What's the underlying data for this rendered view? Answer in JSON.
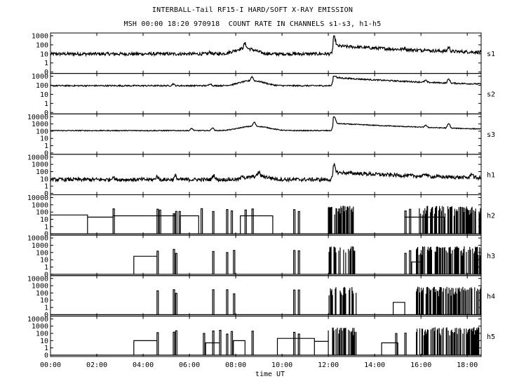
{
  "title_line1": "INTERBALL-Tail RF15-I HARD/SOFT X-RAY EMISSION",
  "title_line2": "MSH 00:00 18:20 970918  COUNT RATE IN CHANNELS s1-s3, h1-h5",
  "chart_data": {
    "type": "line",
    "title": "INTERBALL-Tail RF15-I HARD/SOFT X-RAY EMISSION",
    "subtitle": "MSH 00:00 18:20 970918  COUNT RATE IN CHANNELS s1-s3, h1-h5",
    "xlabel": "time UT",
    "xlim": [
      0,
      18.6
    ],
    "x_ticks": [
      "00:00",
      "02:00",
      "04:00",
      "06:00",
      "08:00",
      "10:00",
      "12:00",
      "14:00",
      "16:00",
      "18:00"
    ],
    "x_tick_hours": [
      0,
      2,
      4,
      6,
      8,
      10,
      12,
      14,
      16,
      18
    ],
    "yscale": "log",
    "grid": false,
    "panels": [
      {
        "name": "s1",
        "ylim": [
          0,
          1000
        ],
        "y_ticks": [
          "1000",
          "100",
          "10",
          "1",
          "0"
        ],
        "baseline": 10,
        "noise": 0.35,
        "events": [
          [
            6.9,
            0.7
          ],
          [
            8.4,
            2.5
          ],
          [
            12.25,
            8
          ],
          [
            15.3,
            0.5
          ],
          [
            16.2,
            0.6
          ],
          [
            17.2,
            1.8
          ]
        ],
        "bumps": [
          [
            8.4,
            0.5,
            4
          ]
        ],
        "decay": [
          [
            12.2,
            1.0,
            8,
            2.5
          ]
        ]
      },
      {
        "name": "s2",
        "ylim": [
          0,
          1000
        ],
        "y_ticks": [
          "1000",
          "100",
          "10",
          "1",
          "0"
        ],
        "baseline": 90,
        "noise": 0.15,
        "events": [
          [
            5.3,
            0.6
          ],
          [
            6.9,
            0.7
          ],
          [
            8.7,
            1.8
          ],
          [
            12.25,
            6
          ],
          [
            16.2,
            0.6
          ],
          [
            17.2,
            1.8
          ]
        ],
        "bumps": [
          [
            8.7,
            0.6,
            3.5
          ]
        ],
        "decay": [
          [
            12.2,
            1.0,
            8,
            2.5
          ]
        ]
      },
      {
        "name": "s3",
        "ylim": [
          0,
          10000
        ],
        "y_ticks": [
          "10000",
          "1000",
          "100",
          "10",
          "1",
          "0"
        ],
        "baseline": 120,
        "noise": 0.12,
        "events": [
          [
            6.1,
            1.0
          ],
          [
            7.0,
            1.5
          ],
          [
            8.8,
            2.5
          ],
          [
            12.25,
            8
          ],
          [
            16.2,
            1
          ],
          [
            17.2,
            3
          ]
        ],
        "bumps": [
          [
            8.8,
            0.7,
            4
          ]
        ],
        "decay": [
          [
            12.2,
            1.0,
            10,
            2.5
          ]
        ]
      },
      {
        "name": "h1",
        "ylim": [
          0,
          10000
        ],
        "y_ticks": [
          "10000",
          "1000",
          "100",
          "10",
          "1",
          "0"
        ],
        "baseline": 8,
        "noise": 0.5,
        "events": [
          [
            2.7,
            1.5
          ],
          [
            4.6,
            1.8
          ],
          [
            5.4,
            2
          ],
          [
            7.05,
            3
          ],
          [
            8.3,
            2
          ],
          [
            9.0,
            2.5
          ],
          [
            12.25,
            8
          ],
          [
            16.2,
            1.5
          ],
          [
            18.2,
            3
          ]
        ],
        "bumps": [
          [
            9.0,
            0.5,
            3
          ]
        ],
        "decay": [
          [
            12.2,
            1.0,
            10,
            2.5
          ]
        ]
      },
      {
        "name": "h2",
        "ylim": [
          0,
          10000
        ],
        "y_ticks": [
          "10000",
          "1000",
          "100",
          "10",
          "1",
          "0"
        ],
        "mode": "sparse",
        "segments": [
          [
            0,
            1.6,
            40
          ],
          [
            1.6,
            2.7,
            20
          ],
          [
            2.7,
            4.6,
            30
          ],
          [
            4.6,
            5.4,
            30
          ],
          [
            5.6,
            6.4,
            30
          ],
          [
            8.2,
            9.6,
            30
          ],
          [
            15.3,
            17,
            20
          ]
        ],
        "spikes": [
          2.7,
          4.6,
          4.7,
          5.3,
          5.4,
          5.55,
          6.5,
          7.0,
          7.6,
          7.8,
          8.4,
          8.7,
          10.5,
          10.7,
          15.3,
          15.5
        ],
        "dense": [
          [
            12.0,
            13.1
          ],
          [
            15.9,
            18.6
          ]
        ]
      },
      {
        "name": "h3",
        "ylim": [
          0,
          10000
        ],
        "y_ticks": [
          "10000",
          "1000",
          "100",
          "10",
          "1",
          "0"
        ],
        "mode": "sparse",
        "segments": [
          [
            3.6,
            4.6,
            30
          ],
          [
            15.6,
            16.0,
            5
          ]
        ],
        "spikes": [
          4.6,
          5.3,
          5.4,
          7.0,
          7.6,
          7.9,
          10.5,
          10.7,
          15.3,
          15.5
        ],
        "dense": [
          [
            12.0,
            13.2
          ],
          [
            15.8,
            18.6
          ]
        ]
      },
      {
        "name": "h4",
        "ylim": [
          0,
          10000
        ],
        "y_ticks": [
          "10000",
          "1000",
          "100",
          "10",
          "1",
          "0"
        ],
        "mode": "sparse",
        "segments": [
          [
            14.8,
            15.3,
            5
          ]
        ],
        "spikes": [
          4.6,
          5.3,
          5.4,
          7.0,
          7.6,
          7.9,
          10.5,
          10.7
        ],
        "dense": [
          [
            12.0,
            13.2
          ],
          [
            15.8,
            18.6
          ]
        ]
      },
      {
        "name": "h5",
        "ylim": [
          0,
          10000
        ],
        "y_ticks": [
          "10000",
          "1000",
          "100",
          "10",
          "1",
          "0"
        ],
        "mode": "sparse",
        "segments": [
          [
            3.6,
            4.6,
            10
          ],
          [
            6.7,
            7.3,
            5
          ],
          [
            7.9,
            8.4,
            10
          ],
          [
            9.8,
            11.4,
            20
          ],
          [
            11.4,
            12.0,
            8
          ],
          [
            14.3,
            15.0,
            5
          ]
        ],
        "spikes": [
          4.6,
          5.3,
          5.4,
          6.6,
          7.0,
          7.3,
          7.6,
          7.8,
          8.7,
          10.5,
          10.7,
          14.9,
          15.3
        ],
        "dense": [
          [
            12.0,
            13.2
          ],
          [
            15.8,
            18.6
          ]
        ]
      }
    ]
  }
}
